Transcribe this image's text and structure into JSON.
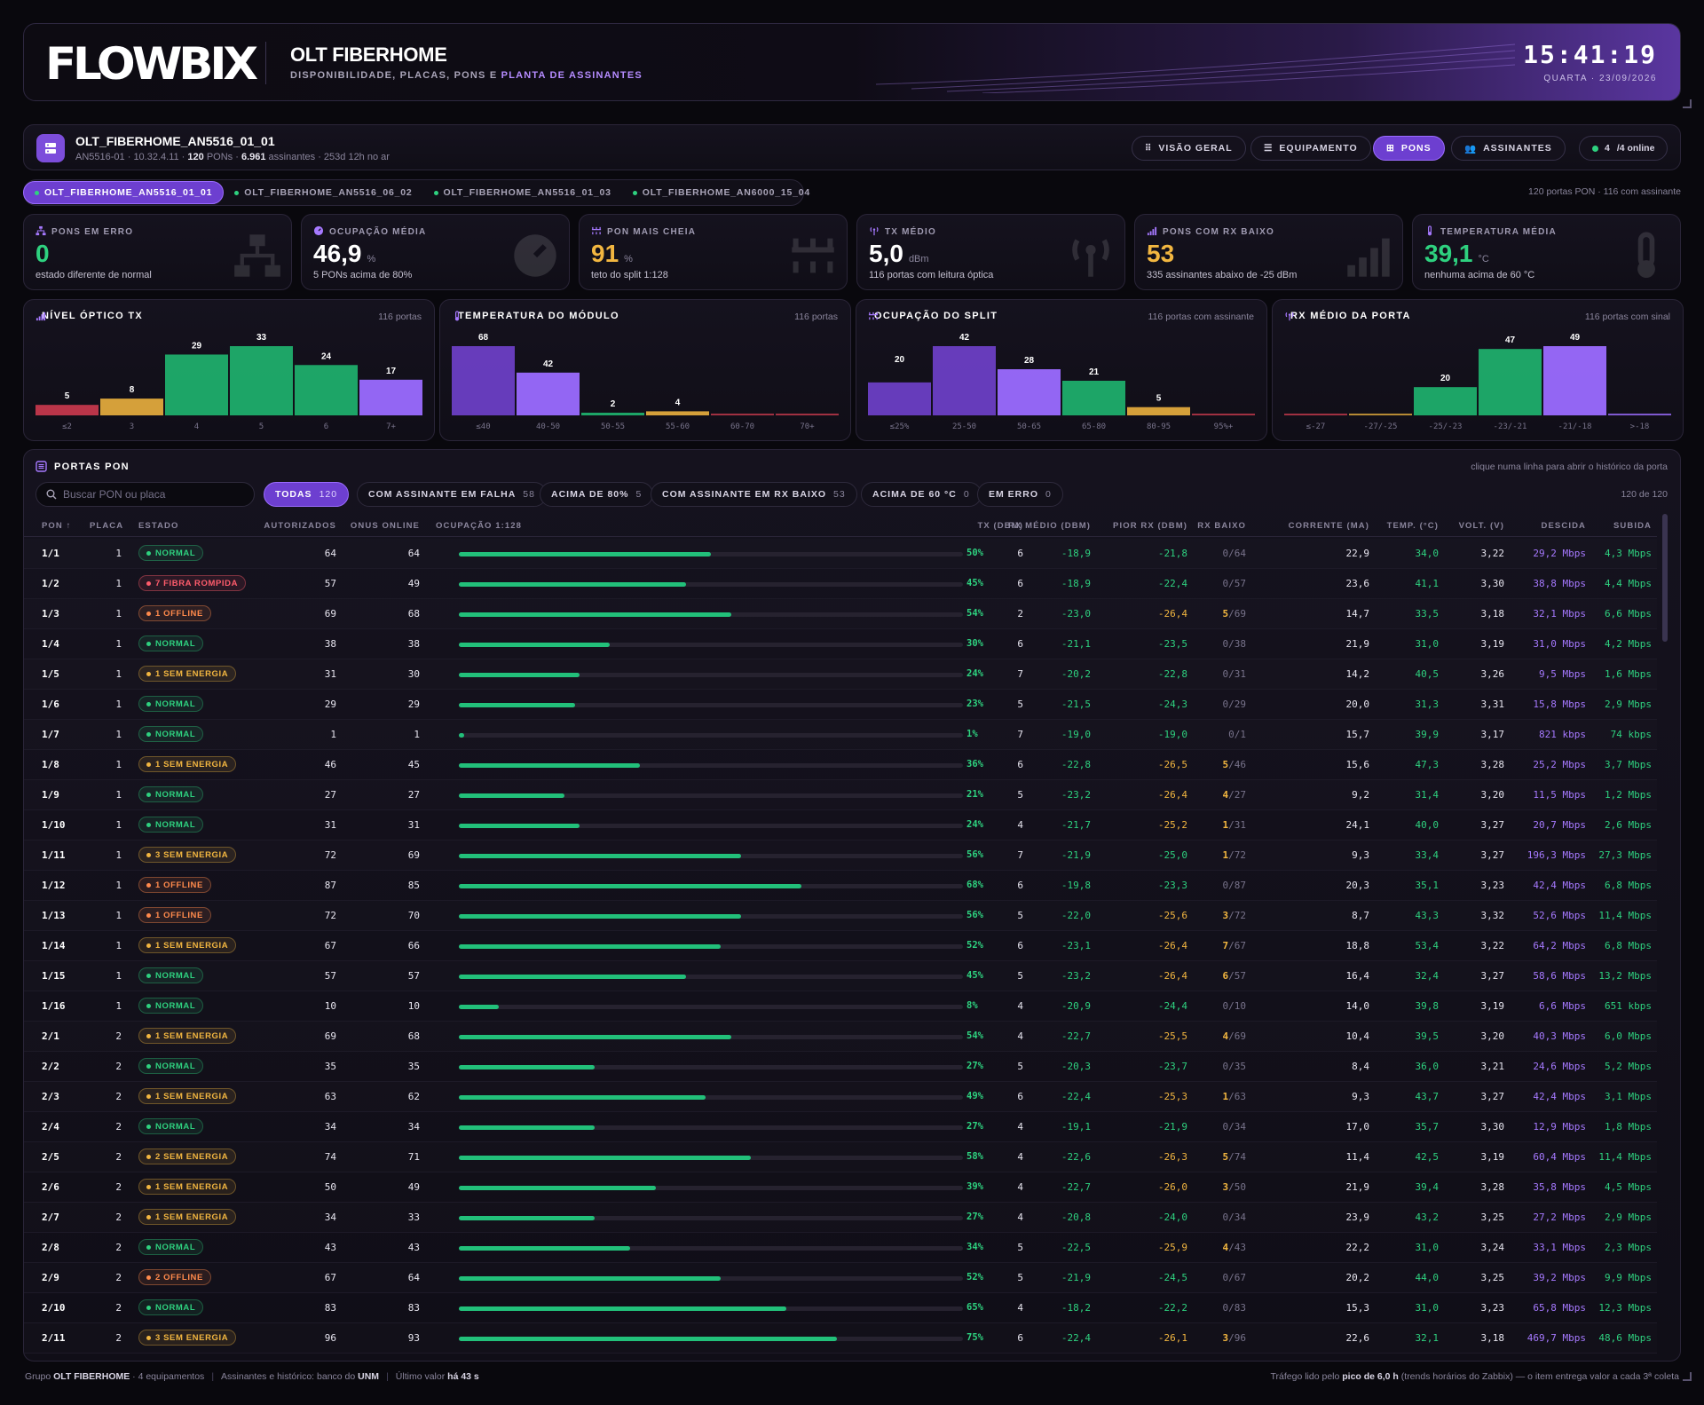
{
  "header": {
    "logo_text": "FLOWBIX",
    "title": "OLT FIBERHOME",
    "subtitle_main": "DISPONIBILIDADE, PLACAS, PONS E ",
    "subtitle_accent": "PLANTA DE ASSINANTES",
    "clock": "15:41:19",
    "date": "QUARTA · 23/09/2026"
  },
  "device": {
    "name": "OLT_FIBERHOME_AN5516_01_01",
    "model": "AN5516-01",
    "ip": "10.32.4.11",
    "pons_value": "120",
    "pons_label": "PONs",
    "subscribers_value": "6.961",
    "subscribers_label": "assinantes",
    "uptime": "253d 12h no ar",
    "icon": "server-icon"
  },
  "nav": [
    {
      "label": "VISÃO GERAL",
      "icon": "grid-icon",
      "active": false
    },
    {
      "label": "EQUIPAMENTO",
      "icon": "server-icon",
      "active": false
    },
    {
      "label": "PONS",
      "icon": "network-icon",
      "active": true
    },
    {
      "label": "ASSINANTES",
      "icon": "users-icon",
      "active": false
    }
  ],
  "online": {
    "count": "4",
    "label": "/4 online"
  },
  "olt_tabs": [
    {
      "label": "OLT_FIBERHOME_AN5516_01_01",
      "active": true
    },
    {
      "label": "OLT_FIBERHOME_AN5516_06_02",
      "active": false
    },
    {
      "label": "OLT_FIBERHOME_AN5516_01_03",
      "active": false
    },
    {
      "label": "OLT_FIBERHOME_AN6000_15_04",
      "active": false
    }
  ],
  "ports_summary": "120 portas PON · 116 com assinante",
  "kpis": [
    {
      "label": "PONS EM ERRO",
      "value": "0",
      "unit": "",
      "desc": "estado diferente de normal",
      "color": "#2ed17f",
      "icon": "network-icon"
    },
    {
      "label": "OCUPAÇÃO MÉDIA",
      "value": "46,9",
      "unit": "%",
      "desc": "5 PONs acima de 80%",
      "color": "#ffffff",
      "icon": "gauge-icon"
    },
    {
      "label": "PON MAIS CHEIA",
      "value": "91",
      "unit": "%",
      "desc": "teto do split 1:128",
      "color": "#f2b640",
      "icon": "split-icon"
    },
    {
      "label": "TX MÉDIO",
      "value": "5,0",
      "unit": "dBm",
      "desc": "116 portas com leitura óptica",
      "color": "#ffffff",
      "icon": "antenna-icon"
    },
    {
      "label": "PONS COM RX BAIXO",
      "value": "53",
      "unit": "",
      "desc": "335 assinantes abaixo de -25 dBm",
      "color": "#f2b640",
      "icon": "signal-icon"
    },
    {
      "label": "TEMPERATURA MÉDIA",
      "value": "39,1",
      "unit": "°C",
      "desc": "nenhuma acima de 60 °C",
      "color": "#2ed17f",
      "icon": "thermometer-icon"
    }
  ],
  "chart_data": [
    {
      "type": "bar",
      "title": "NÍVEL ÓPTICO TX",
      "note": "116 portas",
      "icon": "signal-icon",
      "categories": [
        "≤2",
        "3",
        "4",
        "5",
        "6",
        "7+"
      ],
      "values": [
        5,
        8,
        29,
        33,
        24,
        17
      ],
      "colors": [
        "#c4384c",
        "#e0a93c",
        "#1fae6c",
        "#1fae6c",
        "#1fae6c",
        "#9b6cff"
      ]
    },
    {
      "type": "bar",
      "title": "TEMPERATURA DO MÓDULO",
      "note": "116 portas",
      "icon": "thermometer-icon",
      "categories": [
        "≤40",
        "40-50",
        "50-55",
        "55-60",
        "60-70",
        "70+"
      ],
      "values": [
        68,
        42,
        2,
        4,
        0,
        0
      ],
      "colors": [
        "#6b3fc4",
        "#9b6cff",
        "#1fae6c",
        "#e0a93c",
        "#c4384c",
        "#c4384c"
      ]
    },
    {
      "type": "bar",
      "title": "OCUPAÇÃO DO SPLIT",
      "note": "116 portas com assinante",
      "icon": "split-icon",
      "categories": [
        "≤25%",
        "25-50",
        "50-65",
        "65-80",
        "80-95",
        "95%+"
      ],
      "values": [
        20,
        42,
        28,
        21,
        5,
        0
      ],
      "colors": [
        "#6b3fc4",
        "#6b3fc4",
        "#9b6cff",
        "#1fae6c",
        "#e0a93c",
        "#c4384c"
      ]
    },
    {
      "type": "bar",
      "title": "RX MÉDIO DA PORTA",
      "note": "116 portas com sinal",
      "icon": "antenna-icon",
      "categories": [
        "≤-27",
        "-27/-25",
        "-25/-23",
        "-23/-21",
        "-21/-18",
        ">-18"
      ],
      "values": [
        0,
        0,
        20,
        47,
        49,
        0
      ],
      "colors": [
        "#c4384c",
        "#e0a93c",
        "#1fae6c",
        "#1fae6c",
        "#9b6cff",
        "#9b6cff"
      ]
    }
  ],
  "table": {
    "title": "PORTAS PON",
    "hint": "clique numa linha para abrir o histórico da porta",
    "search_placeholder": "Buscar PON ou placa",
    "count": "120 de 120",
    "filters": [
      {
        "label": "TODAS",
        "count": "120",
        "active": true
      },
      {
        "label": "COM ASSINANTE EM FALHA",
        "count": "58",
        "active": false
      },
      {
        "label": "ACIMA DE 80%",
        "count": "5",
        "active": false
      },
      {
        "label": "COM ASSINANTE EM RX BAIXO",
        "count": "53",
        "active": false
      },
      {
        "label": "ACIMA DE 60 °C",
        "count": "0",
        "active": false
      },
      {
        "label": "EM ERRO",
        "count": "0",
        "active": false
      }
    ],
    "columns": [
      "PON ↑",
      "PLACA",
      "ESTADO",
      "AUTORIZADOS",
      "ONUS ONLINE",
      "OCUPAÇÃO 1:128",
      "TX (DBM)",
      "RX MÉDIO (DBM)",
      "PIOR RX (DBM)",
      "RX BAIXO",
      "CORRENTE (MA)",
      "TEMP. (°C)",
      "VOLT. (V)",
      "DESCIDA",
      "SUBIDA"
    ],
    "rows": [
      [
        "1/1",
        "1",
        "normal",
        "NORMAL",
        "64",
        "64",
        "50%",
        "6",
        "-18,9",
        "-21,8",
        "0",
        "/64",
        "22,9",
        "34,0",
        "3,22",
        "29,2 Mbps",
        "4,3 Mbps"
      ],
      [
        "1/2",
        "1",
        "fiber",
        "7 FIBRA ROMPIDA",
        "57",
        "49",
        "45%",
        "6",
        "-18,9",
        "-22,4",
        "0",
        "/57",
        "23,6",
        "41,1",
        "3,30",
        "38,8 Mbps",
        "4,4 Mbps"
      ],
      [
        "1/3",
        "1",
        "offline",
        "1 OFFLINE",
        "69",
        "68",
        "54%",
        "2",
        "-23,0",
        "-26,4",
        "5",
        "/69",
        "14,7",
        "33,5",
        "3,18",
        "32,1 Mbps",
        "6,6 Mbps"
      ],
      [
        "1/4",
        "1",
        "normal",
        "NORMAL",
        "38",
        "38",
        "30%",
        "6",
        "-21,1",
        "-23,5",
        "0",
        "/38",
        "21,9",
        "31,0",
        "3,19",
        "31,0 Mbps",
        "4,2 Mbps"
      ],
      [
        "1/5",
        "1",
        "power",
        "1 SEM ENERGIA",
        "31",
        "30",
        "24%",
        "7",
        "-20,2",
        "-22,8",
        "0",
        "/31",
        "14,2",
        "40,5",
        "3,26",
        "9,5 Mbps",
        "1,6 Mbps"
      ],
      [
        "1/6",
        "1",
        "normal",
        "NORMAL",
        "29",
        "29",
        "23%",
        "5",
        "-21,5",
        "-24,3",
        "0",
        "/29",
        "20,0",
        "31,3",
        "3,31",
        "15,8 Mbps",
        "2,9 Mbps"
      ],
      [
        "1/7",
        "1",
        "normal",
        "NORMAL",
        "1",
        "1",
        "1%",
        "7",
        "-19,0",
        "-19,0",
        "0",
        "/1",
        "15,7",
        "39,9",
        "3,17",
        "821 kbps",
        "74 kbps"
      ],
      [
        "1/8",
        "1",
        "power",
        "1 SEM ENERGIA",
        "46",
        "45",
        "36%",
        "6",
        "-22,8",
        "-26,5",
        "5",
        "/46",
        "15,6",
        "47,3",
        "3,28",
        "25,2 Mbps",
        "3,7 Mbps"
      ],
      [
        "1/9",
        "1",
        "normal",
        "NORMAL",
        "27",
        "27",
        "21%",
        "5",
        "-23,2",
        "-26,4",
        "4",
        "/27",
        "9,2",
        "31,4",
        "3,20",
        "11,5 Mbps",
        "1,2 Mbps"
      ],
      [
        "1/10",
        "1",
        "normal",
        "NORMAL",
        "31",
        "31",
        "24%",
        "4",
        "-21,7",
        "-25,2",
        "1",
        "/31",
        "24,1",
        "40,0",
        "3,27",
        "20,7 Mbps",
        "2,6 Mbps"
      ],
      [
        "1/11",
        "1",
        "power",
        "3 SEM ENERGIA",
        "72",
        "69",
        "56%",
        "7",
        "-21,9",
        "-25,0",
        "1",
        "/72",
        "9,3",
        "33,4",
        "3,27",
        "196,3 Mbps",
        "27,3 Mbps"
      ],
      [
        "1/12",
        "1",
        "offline",
        "1 OFFLINE",
        "87",
        "85",
        "68%",
        "6",
        "-19,8",
        "-23,3",
        "0",
        "/87",
        "20,3",
        "35,1",
        "3,23",
        "42,4 Mbps",
        "6,8 Mbps"
      ],
      [
        "1/13",
        "1",
        "offline",
        "1 OFFLINE",
        "72",
        "70",
        "56%",
        "5",
        "-22,0",
        "-25,6",
        "3",
        "/72",
        "8,7",
        "43,3",
        "3,32",
        "52,6 Mbps",
        "11,4 Mbps"
      ],
      [
        "1/14",
        "1",
        "power",
        "1 SEM ENERGIA",
        "67",
        "66",
        "52%",
        "6",
        "-23,1",
        "-26,4",
        "7",
        "/67",
        "18,8",
        "53,4",
        "3,22",
        "64,2 Mbps",
        "6,8 Mbps"
      ],
      [
        "1/15",
        "1",
        "normal",
        "NORMAL",
        "57",
        "57",
        "45%",
        "5",
        "-23,2",
        "-26,4",
        "6",
        "/57",
        "16,4",
        "32,4",
        "3,27",
        "58,6 Mbps",
        "13,2 Mbps"
      ],
      [
        "1/16",
        "1",
        "normal",
        "NORMAL",
        "10",
        "10",
        "8%",
        "4",
        "-20,9",
        "-24,4",
        "0",
        "/10",
        "14,0",
        "39,8",
        "3,19",
        "6,6 Mbps",
        "651 kbps"
      ],
      [
        "2/1",
        "2",
        "power",
        "1 SEM ENERGIA",
        "69",
        "68",
        "54%",
        "4",
        "-22,7",
        "-25,5",
        "4",
        "/69",
        "10,4",
        "39,5",
        "3,20",
        "40,3 Mbps",
        "6,0 Mbps"
      ],
      [
        "2/2",
        "2",
        "normal",
        "NORMAL",
        "35",
        "35",
        "27%",
        "5",
        "-20,3",
        "-23,7",
        "0",
        "/35",
        "8,4",
        "36,0",
        "3,21",
        "24,6 Mbps",
        "5,2 Mbps"
      ],
      [
        "2/3",
        "2",
        "power",
        "1 SEM ENERGIA",
        "63",
        "62",
        "49%",
        "6",
        "-22,4",
        "-25,3",
        "1",
        "/63",
        "9,3",
        "43,7",
        "3,27",
        "42,4 Mbps",
        "3,1 Mbps"
      ],
      [
        "2/4",
        "2",
        "normal",
        "NORMAL",
        "34",
        "34",
        "27%",
        "4",
        "-19,1",
        "-21,9",
        "0",
        "/34",
        "17,0",
        "35,7",
        "3,30",
        "12,9 Mbps",
        "1,8 Mbps"
      ],
      [
        "2/5",
        "2",
        "power",
        "2 SEM ENERGIA",
        "74",
        "71",
        "58%",
        "4",
        "-22,6",
        "-26,3",
        "5",
        "/74",
        "11,4",
        "42,5",
        "3,19",
        "60,4 Mbps",
        "11,4 Mbps"
      ],
      [
        "2/6",
        "2",
        "power",
        "1 SEM ENERGIA",
        "50",
        "49",
        "39%",
        "4",
        "-22,7",
        "-26,0",
        "3",
        "/50",
        "21,9",
        "39,4",
        "3,28",
        "35,8 Mbps",
        "4,5 Mbps"
      ],
      [
        "2/7",
        "2",
        "power",
        "1 SEM ENERGIA",
        "34",
        "33",
        "27%",
        "4",
        "-20,8",
        "-24,0",
        "0",
        "/34",
        "23,9",
        "43,2",
        "3,25",
        "27,2 Mbps",
        "2,9 Mbps"
      ],
      [
        "2/8",
        "2",
        "normal",
        "NORMAL",
        "43",
        "43",
        "34%",
        "5",
        "-22,5",
        "-25,9",
        "4",
        "/43",
        "22,2",
        "31,0",
        "3,24",
        "33,1 Mbps",
        "2,3 Mbps"
      ],
      [
        "2/9",
        "2",
        "offline",
        "2 OFFLINE",
        "67",
        "64",
        "52%",
        "5",
        "-21,9",
        "-24,5",
        "0",
        "/67",
        "20,2",
        "44,0",
        "3,25",
        "39,2 Mbps",
        "9,9 Mbps"
      ],
      [
        "2/10",
        "2",
        "normal",
        "NORMAL",
        "83",
        "83",
        "65%",
        "4",
        "-18,2",
        "-22,2",
        "0",
        "/83",
        "15,3",
        "31,0",
        "3,23",
        "65,8 Mbps",
        "12,3 Mbps"
      ],
      [
        "2/11",
        "2",
        "power",
        "3 SEM ENERGIA",
        "96",
        "93",
        "75%",
        "6",
        "-22,4",
        "-26,1",
        "3",
        "/96",
        "22,6",
        "32,1",
        "3,18",
        "469,7 Mbps",
        "48,6 Mbps"
      ]
    ]
  },
  "footer": {
    "group_prefix": "Grupo ",
    "group_name": "OLT FIBERHOME",
    "group_suffix": " · 4 equipamentos",
    "source_prefix": "Assinantes e histórico: banco do ",
    "source_name": "UNM",
    "last_prefix": "Último valor ",
    "last_value": "há 43 s",
    "traffic_prefix": "Tráfego lido pelo ",
    "traffic_value": "pico de 6,0 h",
    "traffic_suffix": " (trends horários do Zabbix) — o item entrega valor a cada 3ª coleta"
  }
}
